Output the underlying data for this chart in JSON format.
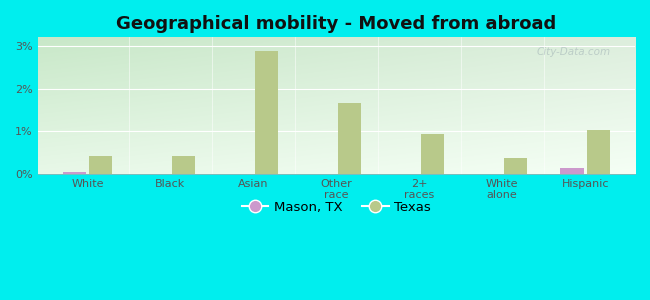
{
  "title": "Geographical mobility - Moved from abroad",
  "categories": [
    "White",
    "Black",
    "Asian",
    "Other\nrace",
    "2+\nraces",
    "White\nalone",
    "Hispanic"
  ],
  "mason_values": [
    0.05,
    0.0,
    0.0,
    0.0,
    0.0,
    0.0,
    0.13
  ],
  "texas_values": [
    0.42,
    0.42,
    2.88,
    1.65,
    0.93,
    0.36,
    1.02
  ],
  "mason_color": "#cc99cc",
  "texas_color": "#b8c98a",
  "outer_bg": "#00eeee",
  "plot_bg_topleft": "#c8e8c8",
  "plot_bg_topright": "#ddeedd",
  "plot_bg_bottomleft": "#e8f8e8",
  "plot_bg_bottomright": "#f5fff5",
  "ylim": [
    0,
    3.2
  ],
  "yticks": [
    0,
    1,
    2,
    3
  ],
  "ytick_labels": [
    "0%",
    "1%",
    "2%",
    "3%"
  ],
  "bar_width": 0.28,
  "title_fontsize": 13,
  "tick_fontsize": 8,
  "legend_mason": "Mason, TX",
  "legend_texas": "Texas",
  "watermark": "City-Data.com"
}
